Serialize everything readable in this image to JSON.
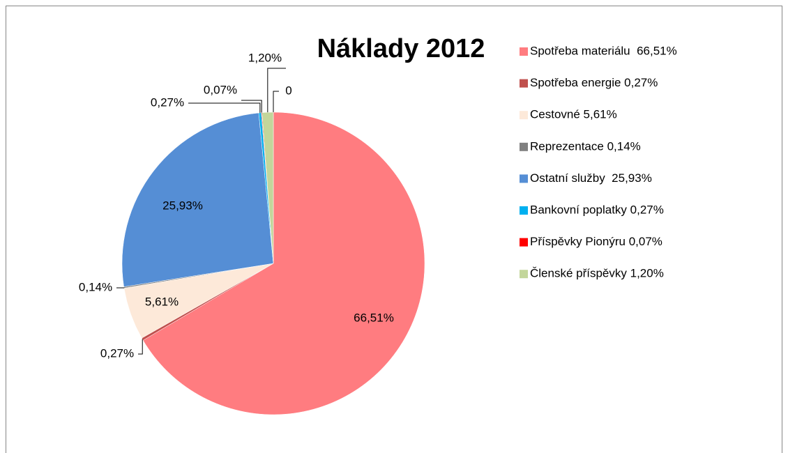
{
  "chart_data": {
    "type": "pie",
    "title": "Náklady 2012",
    "categories": [
      "Spotřeba materiálu  66,51%",
      "Spotřeba energie 0,27%",
      "Cestovné 5,61%",
      "Reprezentace 0,14%",
      "Ostatní služby  25,93%",
      "Bankovní poplatky 0,27%",
      "Příspěvky Pionýru 0,07%",
      "Členské příspěvky 1,20%",
      null
    ],
    "values": [
      66.51,
      0.27,
      5.61,
      0.14,
      25.93,
      0.27,
      0.07,
      1.2,
      0
    ],
    "value_labels": [
      "66,51%",
      "0,27%",
      "5,61%",
      "0,14%",
      "25,93%",
      "0,27%",
      "0,07%",
      "1,20%",
      "0"
    ],
    "colors": [
      "#ff7c80",
      "#c0504d",
      "#fde9d9",
      "#808080",
      "#558ed5",
      "#00b0f0",
      "#ff0000",
      "#c3d69b",
      null
    ],
    "legend": "right"
  }
}
